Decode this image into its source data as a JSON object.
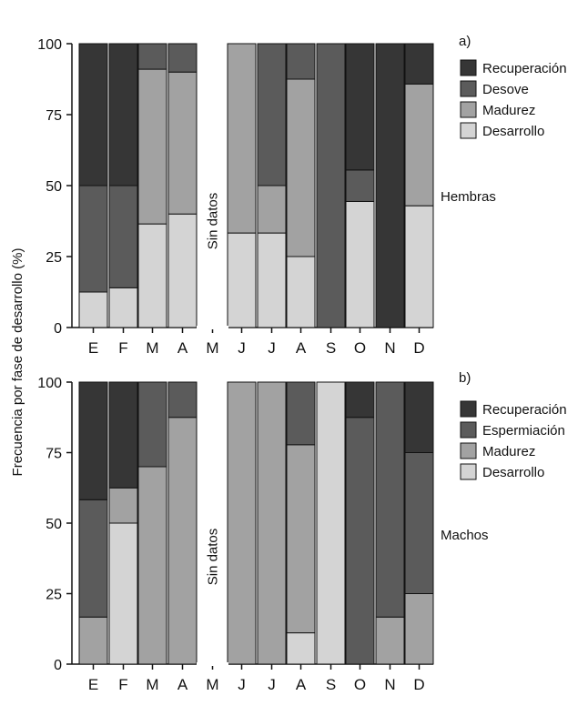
{
  "ylabel": "Frecuencia por fase de desarrollo (%)",
  "chart_data": [
    {
      "type": "bar",
      "stacked": true,
      "panel_label": "a)",
      "group_label": "Hembras",
      "no_data_label": "Sin datos",
      "categories": [
        "E",
        "F",
        "M",
        "A",
        "M",
        "J",
        "J",
        "A",
        "S",
        "O",
        "N",
        "D"
      ],
      "ylim": [
        0,
        100
      ],
      "yticks": [
        "0",
        "25",
        "50",
        "75",
        "100"
      ],
      "legend_position": "top-right",
      "series": [
        {
          "name": "Desarrollo",
          "color": "#d4d4d4",
          "values": [
            12.5,
            14,
            36.5,
            40,
            null,
            33.3,
            33.3,
            25,
            0,
            44.4,
            0,
            42.9
          ]
        },
        {
          "name": "Madurez",
          "color": "#a2a2a2",
          "values": [
            0,
            0,
            54.5,
            50,
            null,
            66.7,
            16.7,
            62.5,
            0,
            0,
            0,
            42.9
          ]
        },
        {
          "name": "Desove",
          "color": "#5b5b5b",
          "values": [
            37.5,
            36,
            9,
            10,
            null,
            0,
            50,
            12.5,
            100,
            11.1,
            0,
            0
          ]
        },
        {
          "name": "Recuperación",
          "color": "#363636",
          "values": [
            50,
            50,
            0,
            0,
            null,
            0,
            0,
            0,
            0,
            44.5,
            100,
            14.2
          ]
        }
      ],
      "legend_order": [
        "Recuperación",
        "Desove",
        "Madurez",
        "Desarrollo"
      ]
    },
    {
      "type": "bar",
      "stacked": true,
      "panel_label": "b)",
      "group_label": "Machos",
      "no_data_label": "Sin datos",
      "categories": [
        "E",
        "F",
        "M",
        "A",
        "M",
        "J",
        "J",
        "A",
        "S",
        "O",
        "N",
        "D"
      ],
      "ylim": [
        0,
        100
      ],
      "yticks": [
        "0",
        "25",
        "50",
        "75",
        "100"
      ],
      "legend_position": "top-right",
      "series": [
        {
          "name": "Desarrollo",
          "color": "#d4d4d4",
          "values": [
            0,
            50,
            0,
            0,
            null,
            0,
            0,
            11.1,
            100,
            0,
            0,
            0
          ]
        },
        {
          "name": "Madurez",
          "color": "#a2a2a2",
          "values": [
            16.7,
            12.5,
            70,
            87.5,
            null,
            100,
            100,
            66.7,
            0,
            0,
            16.7,
            25
          ]
        },
        {
          "name": "Espermiación",
          "color": "#5b5b5b",
          "values": [
            41.6,
            0,
            30,
            12.5,
            null,
            0,
            0,
            22.2,
            0,
            87.5,
            83.3,
            50
          ]
        },
        {
          "name": "Recuperación",
          "color": "#363636",
          "values": [
            41.7,
            37.5,
            0,
            0,
            null,
            0,
            0,
            0,
            0,
            12.5,
            0,
            25
          ]
        }
      ],
      "legend_order": [
        "Recuperación",
        "Espermiación",
        "Madurez",
        "Desarrollo"
      ]
    }
  ]
}
